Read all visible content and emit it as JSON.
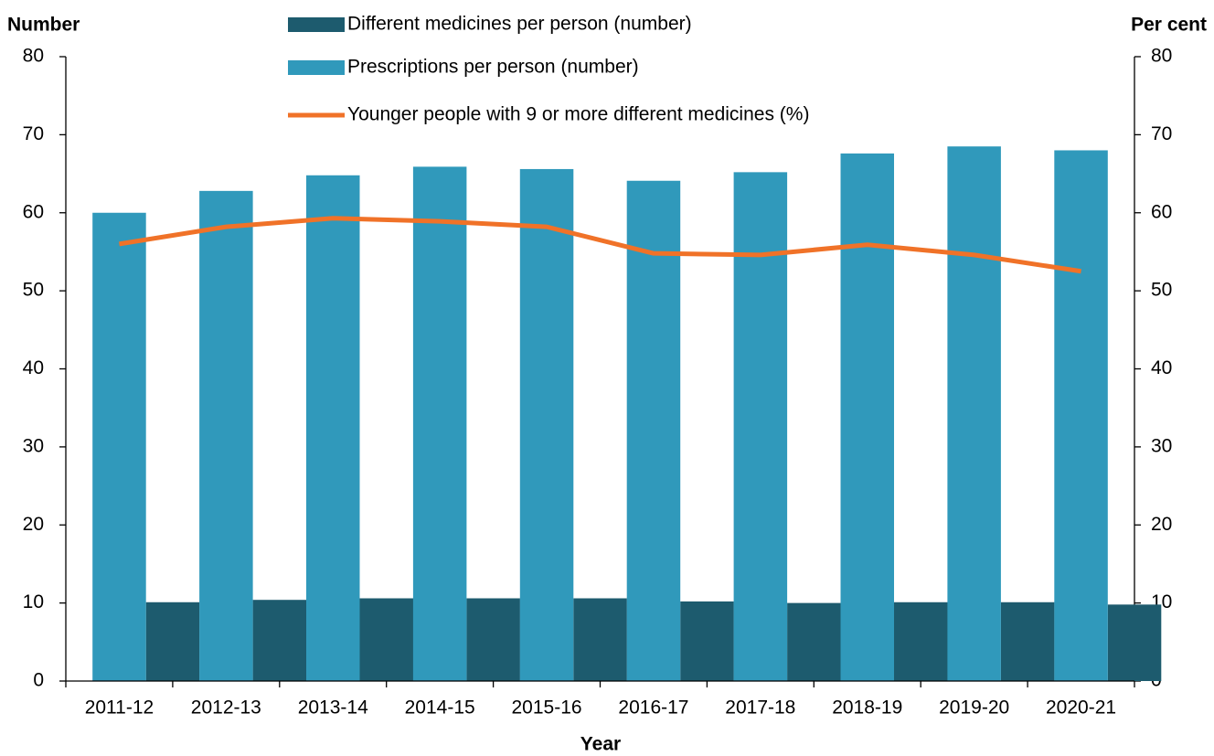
{
  "chart_data": {
    "type": "bar",
    "y_label": "Number",
    "y2_label": "Per cent",
    "x_label": "Year",
    "categories": [
      "2011-12",
      "2012-13",
      "2013-14",
      "2014-15",
      "2015-16",
      "2016-17",
      "2017-18",
      "2018-19",
      "2019-20",
      "2020-21"
    ],
    "series": [
      {
        "name": "Different medicines per person (number)",
        "type": "bar",
        "color": "#1d5b6e",
        "values": [
          10.1,
          10.4,
          10.6,
          10.6,
          10.6,
          10.2,
          10.0,
          10.1,
          10.1,
          9.8
        ]
      },
      {
        "name": "Prescriptions per person (number)",
        "type": "bar",
        "color": "#3099bb",
        "values": [
          60.0,
          62.8,
          64.8,
          65.9,
          65.6,
          64.1,
          65.2,
          67.6,
          68.5,
          68.0
        ]
      },
      {
        "name": "Younger people with 9 or more different medicines (%)",
        "type": "line",
        "axis": "y2",
        "color": "#f07228",
        "values": [
          56.0,
          58.2,
          59.3,
          58.9,
          58.2,
          54.8,
          54.6,
          55.9,
          54.6,
          52.5
        ]
      }
    ],
    "ylim": [
      0,
      80
    ],
    "yticks": [
      0,
      10,
      20,
      30,
      40,
      50,
      60,
      70,
      80
    ],
    "y2lim": [
      0,
      80
    ],
    "y2ticks": [
      0,
      10,
      20,
      30,
      40,
      50,
      60,
      70,
      80
    ],
    "grid": false,
    "legend": "top"
  }
}
